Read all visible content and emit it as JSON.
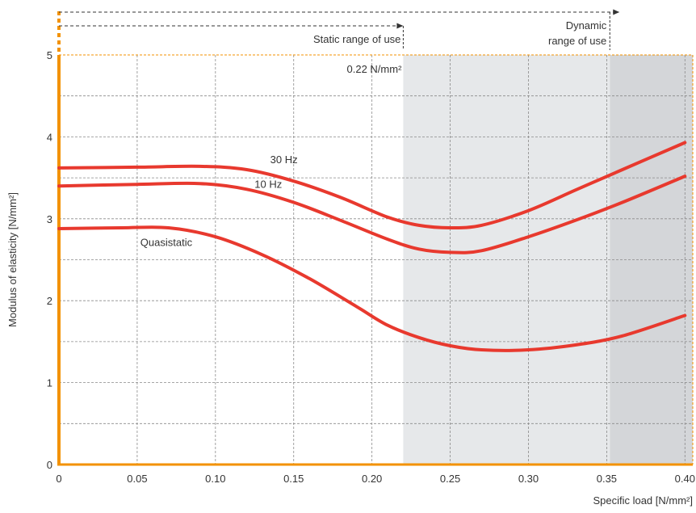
{
  "chart_data": {
    "type": "line",
    "title": "",
    "xlabel": "Specific load [N/mm²]",
    "ylabel": "Modulus of elasticity [N/mm²]",
    "xlim": [
      0,
      0.405
    ],
    "ylim": [
      0,
      5
    ],
    "x_ticks": [
      0,
      0.05,
      0.1,
      0.15,
      0.2,
      0.25,
      0.3,
      0.35,
      0.4
    ],
    "x_tick_labels": [
      "0",
      "0.05",
      "0.10",
      "0.15",
      "0.20",
      "0.25",
      "0.30",
      "0.35",
      "0.40"
    ],
    "y_ticks": [
      0,
      1,
      2,
      3,
      4,
      5
    ],
    "y_tick_labels": [
      "0",
      "1",
      "2",
      "3",
      "4",
      "5"
    ],
    "grid": true,
    "series": [
      {
        "name": "30 Hz",
        "color": "#e8392e",
        "x": [
          0,
          0.05,
          0.09,
          0.12,
          0.15,
          0.18,
          0.21,
          0.23,
          0.25,
          0.27,
          0.3,
          0.33,
          0.36,
          0.4
        ],
        "y": [
          3.62,
          3.63,
          3.64,
          3.6,
          3.46,
          3.26,
          3.02,
          2.92,
          2.89,
          2.92,
          3.1,
          3.35,
          3.6,
          3.93
        ]
      },
      {
        "name": "10 Hz",
        "color": "#e8392e",
        "x": [
          0,
          0.05,
          0.09,
          0.12,
          0.15,
          0.18,
          0.21,
          0.23,
          0.25,
          0.27,
          0.3,
          0.33,
          0.36,
          0.4
        ],
        "y": [
          3.4,
          3.42,
          3.43,
          3.36,
          3.2,
          2.98,
          2.75,
          2.63,
          2.59,
          2.61,
          2.78,
          2.98,
          3.2,
          3.52
        ]
      },
      {
        "name": "Quasistatic",
        "color": "#e8392e",
        "x": [
          0,
          0.04,
          0.07,
          0.1,
          0.13,
          0.16,
          0.19,
          0.21,
          0.23,
          0.25,
          0.27,
          0.3,
          0.33,
          0.36,
          0.4
        ],
        "y": [
          2.88,
          2.89,
          2.89,
          2.78,
          2.56,
          2.27,
          1.93,
          1.7,
          1.55,
          1.45,
          1.4,
          1.4,
          1.46,
          1.57,
          1.82
        ]
      }
    ],
    "regions": [
      {
        "from": 0.22,
        "to": 0.352,
        "color": "#e6e8ea"
      },
      {
        "from": 0.352,
        "to": 0.405,
        "color": "#d4d6d9"
      }
    ],
    "annotations": {
      "threshold_label": "0.22 N/mm²",
      "static_range_label": "Static range of use",
      "dynamic_range_label_line1": "Dynamic",
      "dynamic_range_label_line2": "range of use",
      "static_range_end_x": 0.22,
      "dynamic_range_end_x": 0.352
    },
    "accent_color": "#f39200",
    "line_color": "#e8392e"
  }
}
